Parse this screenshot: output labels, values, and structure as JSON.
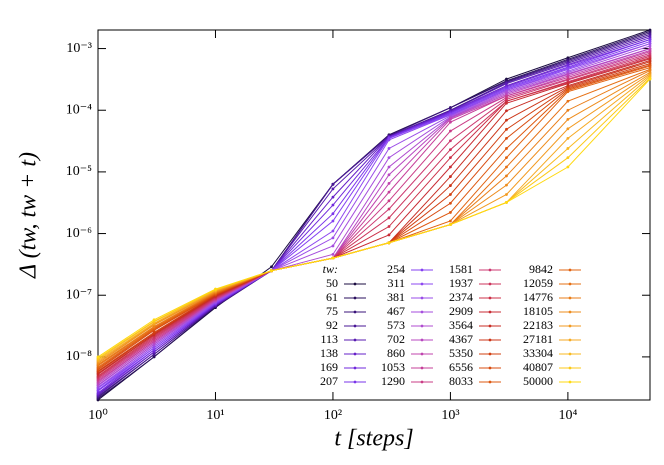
{
  "chart_data": {
    "type": "line",
    "xlabel": "t [steps]",
    "ylabel": "Δ (tw, tw + t)",
    "legend_title": "tw:",
    "legend": "lower right",
    "xscale": "log",
    "yscale": "log",
    "xlim": [
      1,
      50000
    ],
    "ylim": [
      2e-09,
      0.002
    ],
    "xticks": [
      {
        "value": 1,
        "label": "10⁰"
      },
      {
        "value": 10,
        "label": "10¹"
      },
      {
        "value": 100,
        "label": "10²"
      },
      {
        "value": 1000,
        "label": "10³"
      },
      {
        "value": 10000,
        "label": "10⁴"
      }
    ],
    "yticks": [
      {
        "value": 1e-08,
        "label": "10⁻⁸"
      },
      {
        "value": 1e-07,
        "label": "10⁻⁷"
      },
      {
        "value": 1e-06,
        "label": "10⁻⁶"
      },
      {
        "value": 1e-05,
        "label": "10⁻⁵"
      },
      {
        "value": 0.0001,
        "label": "10⁻⁴"
      },
      {
        "value": 0.001,
        "label": "10⁻³"
      }
    ],
    "x": [
      1,
      3,
      10,
      30,
      100,
      300,
      1000,
      3000,
      10000,
      50000
    ],
    "series": [
      {
        "name": "50",
        "color": "#1b0c41",
        "values": [
          2e-09,
          1e-08,
          6.3e-08,
          2.9e-07,
          6.3e-06,
          4e-05,
          0.00011,
          0.00032,
          0.00071,
          0.002
        ]
      },
      {
        "name": "61",
        "color": "#2a0f5e",
        "values": [
          2.1e-09,
          1e-08,
          6.5e-08,
          2.5e-07,
          6.3e-06,
          3.9e-05,
          0.00011,
          0.0003,
          0.00067,
          0.0019
        ]
      },
      {
        "name": "75",
        "color": "#3a137a",
        "values": [
          2.2e-09,
          1.1e-08,
          6.6e-08,
          2.5e-07,
          6.3e-06,
          3.9e-05,
          0.00011,
          0.00029,
          0.00064,
          0.0018
        ]
      },
      {
        "name": "92",
        "color": "#491796",
        "values": [
          2.3e-09,
          1.1e-08,
          6.7e-08,
          2.5e-07,
          6.3e-06,
          3.8e-05,
          0.0001,
          0.00028,
          0.00061,
          0.0017
        ]
      },
      {
        "name": "113",
        "color": "#581bb0",
        "values": [
          2.4e-09,
          1.2e-08,
          6.8e-08,
          2.5e-07,
          5.3e-06,
          3.7e-05,
          9.8e-05,
          0.00027,
          0.00058,
          0.0016
        ]
      },
      {
        "name": "138",
        "color": "#6620c8",
        "values": [
          2.5e-09,
          1.2e-08,
          7e-08,
          2.5e-07,
          3.9e-06,
          3.7e-05,
          9.5e-05,
          0.00025,
          0.00055,
          0.0015
        ]
      },
      {
        "name": "169",
        "color": "#7028dc",
        "values": [
          2.6e-09,
          1.3e-08,
          7.1e-08,
          2.5e-07,
          2.9e-06,
          3.6e-05,
          9.2e-05,
          0.00024,
          0.00053,
          0.0014
        ]
      },
      {
        "name": "207",
        "color": "#7a34ea",
        "values": [
          2.8e-09,
          1.3e-08,
          7.3e-08,
          2.5e-07,
          2.1e-06,
          3.6e-05,
          8.9e-05,
          0.00023,
          0.0005,
          0.0014
        ]
      },
      {
        "name": "254",
        "color": "#8440f2",
        "values": [
          2.9e-09,
          1.4e-08,
          7.4e-08,
          2.5e-07,
          1.6e-06,
          3.5e-05,
          8.6e-05,
          0.00022,
          0.00048,
          0.0013
        ]
      },
      {
        "name": "311",
        "color": "#8e48f0",
        "values": [
          3.1e-09,
          1.4e-08,
          7.6e-08,
          2.5e-07,
          1.1e-06,
          3.3e-05,
          8.4e-05,
          0.00021,
          0.00046,
          0.0012
        ]
      },
      {
        "name": "381",
        "color": "#9a4ce8",
        "values": [
          3.2e-09,
          1.5e-08,
          7.7e-08,
          2.5e-07,
          8.5e-07,
          2.4e-05,
          8.1e-05,
          0.00021,
          0.00043,
          0.0012
        ]
      },
      {
        "name": "467",
        "color": "#a64ede",
        "values": [
          3.4e-09,
          1.6e-08,
          7.9e-08,
          2.5e-07,
          6.3e-07,
          1.7e-05,
          7.8e-05,
          0.0002,
          0.00041,
          0.0011
        ]
      },
      {
        "name": "573",
        "color": "#b04cd0",
        "values": [
          3.5e-09,
          1.6e-08,
          8.1e-08,
          2.5e-07,
          4.6e-07,
          1.2e-05,
          7.6e-05,
          0.00019,
          0.00039,
          0.001
        ]
      },
      {
        "name": "702",
        "color": "#b848c0",
        "values": [
          3.7e-09,
          1.7e-08,
          8.2e-08,
          2.5e-07,
          4e-07,
          9e-06,
          7.4e-05,
          0.00018,
          0.00038,
          0.00099
        ]
      },
      {
        "name": "860",
        "color": "#c044ae",
        "values": [
          3.9e-09,
          1.8e-08,
          8.4e-08,
          2.5e-07,
          4e-07,
          6.5e-06,
          7.1e-05,
          0.00017,
          0.00036,
          0.00093
        ]
      },
      {
        "name": "1053",
        "color": "#c6409a",
        "values": [
          4.1e-09,
          1.8e-08,
          8.6e-08,
          2.5e-07,
          4e-07,
          4.7e-06,
          6.4e-05,
          0.00017,
          0.00034,
          0.00089
        ]
      },
      {
        "name": "1290",
        "color": "#ca3c86",
        "values": [
          4.3e-09,
          1.9e-08,
          8.7e-08,
          2.5e-07,
          4e-07,
          3.4e-06,
          4.6e-05,
          0.00016,
          0.00032,
          0.00084
        ]
      },
      {
        "name": "1581",
        "color": "#cc3870",
        "values": [
          4.5e-09,
          2e-08,
          8.9e-08,
          2.5e-07,
          4e-07,
          2.5e-06,
          3.2e-05,
          0.00015,
          0.00031,
          0.00079
        ]
      },
      {
        "name": "1937",
        "color": "#cc345c",
        "values": [
          4.7e-09,
          2.1e-08,
          9.1e-08,
          2.5e-07,
          4e-07,
          1.8e-06,
          2.3e-05,
          0.00014,
          0.00029,
          0.00075
        ]
      },
      {
        "name": "2374",
        "color": "#cc3048",
        "values": [
          4.9e-09,
          2.2e-08,
          9.3e-08,
          2.5e-07,
          4e-07,
          1.3e-06,
          1.7e-05,
          0.00014,
          0.00028,
          0.00071
        ]
      },
      {
        "name": "2909",
        "color": "#c82c34",
        "values": [
          5.2e-09,
          2.3e-08,
          9.5e-08,
          2.5e-07,
          4e-07,
          9.5e-07,
          1.2e-05,
          0.00013,
          0.00027,
          0.00068
        ]
      },
      {
        "name": "3564",
        "color": "#c82e24",
        "values": [
          5.4e-09,
          2.3e-08,
          9.7e-08,
          2.5e-07,
          4e-07,
          7.1e-07,
          8.4e-06,
          9.8e-05,
          0.00025,
          0.00064
        ]
      },
      {
        "name": "4367",
        "color": "#cc3618",
        "values": [
          5.7e-09,
          2.4e-08,
          9.9e-08,
          2.5e-07,
          4e-07,
          7.1e-07,
          6e-06,
          6.9e-05,
          0.00024,
          0.00061
        ]
      },
      {
        "name": "5350",
        "color": "#d24012",
        "values": [
          5.9e-09,
          2.5e-08,
          1.01e-07,
          2.5e-07,
          4e-07,
          7.1e-07,
          4.3e-06,
          4.9e-05,
          0.00023,
          0.00057
        ]
      },
      {
        "name": "6556",
        "color": "#d84c10",
        "values": [
          6.2e-09,
          2.7e-08,
          1.03e-07,
          2.5e-07,
          4e-07,
          7.1e-07,
          3.1e-06,
          3.5e-05,
          0.00022,
          0.00054
        ]
      },
      {
        "name": "8033",
        "color": "#de5810",
        "values": [
          6.5e-09,
          2.8e-08,
          1.05e-07,
          2.5e-07,
          4e-07,
          7.1e-07,
          2.2e-06,
          2.4e-05,
          0.00021,
          0.00052
        ]
      },
      {
        "name": "9842",
        "color": "#e26412",
        "values": [
          6.8e-09,
          2.9e-08,
          1.07e-07,
          2.5e-07,
          4e-07,
          7.1e-07,
          1.6e-06,
          1.7e-05,
          0.0002,
          0.00049
        ]
      },
      {
        "name": "12059",
        "color": "#e67014",
        "values": [
          7.2e-09,
          3e-08,
          1.09e-07,
          2.5e-07,
          4e-07,
          7.1e-07,
          1.4e-06,
          1.2e-05,
          0.00014,
          0.00046
        ]
      },
      {
        "name": "14776",
        "color": "#ea7e18",
        "values": [
          7.5e-09,
          3.1e-08,
          1.11e-07,
          2.5e-07,
          4e-07,
          7.1e-07,
          1.4e-06,
          8.6e-06,
          0.0001,
          0.00044
        ]
      },
      {
        "name": "18105",
        "color": "#ee8c1c",
        "values": [
          7.9e-09,
          3.3e-08,
          1.14e-07,
          2.5e-07,
          4e-07,
          7.1e-07,
          1.4e-06,
          6.1e-06,
          7.1e-05,
          0.00041
        ]
      },
      {
        "name": "22183",
        "color": "#f29a20",
        "values": [
          8.3e-09,
          3.4e-08,
          1.16e-07,
          2.5e-07,
          4e-07,
          7.1e-07,
          1.4e-06,
          4.3e-06,
          5e-05,
          0.00039
        ]
      },
      {
        "name": "27181",
        "color": "#f6aa24",
        "values": [
          8.7e-09,
          3.5e-08,
          1.19e-07,
          2.5e-07,
          4e-07,
          7.1e-07,
          1.4e-06,
          3.2e-06,
          3.5e-05,
          0.00037
        ]
      },
      {
        "name": "33304",
        "color": "#f8ba20",
        "values": [
          9.1e-09,
          3.7e-08,
          1.21e-07,
          2.5e-07,
          4e-07,
          7.1e-07,
          1.4e-06,
          3.2e-06,
          2.4e-05,
          0.00035
        ]
      },
      {
        "name": "40807",
        "color": "#fcca18",
        "values": [
          9.5e-09,
          3.8e-08,
          1.23e-07,
          2.5e-07,
          4e-07,
          7.1e-07,
          1.4e-06,
          3.2e-06,
          1.7e-05,
          0.00033
        ]
      },
      {
        "name": "50000",
        "color": "#ffd910",
        "values": [
          1e-08,
          4e-08,
          1.26e-07,
          2.5e-07,
          4e-07,
          7.1e-07,
          1.4e-06,
          3.2e-06,
          1.2e-05,
          0.00032
        ]
      }
    ]
  }
}
